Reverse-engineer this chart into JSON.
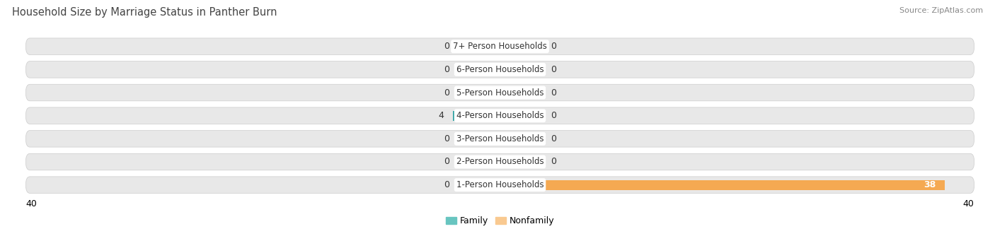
{
  "title": "Household Size by Marriage Status in Panther Burn",
  "source": "Source: ZipAtlas.com",
  "categories": [
    "7+ Person Households",
    "6-Person Households",
    "5-Person Households",
    "4-Person Households",
    "3-Person Households",
    "2-Person Households",
    "1-Person Households"
  ],
  "family_values": [
    0,
    0,
    0,
    4,
    0,
    0,
    0
  ],
  "nonfamily_values": [
    0,
    0,
    0,
    0,
    0,
    0,
    38
  ],
  "family_color_light": "#68C5C0",
  "family_color_dark": "#2BA0A0",
  "nonfamily_color_light": "#F9C990",
  "nonfamily_color_dark": "#F5A952",
  "xlim_left": -40,
  "xlim_right": 40,
  "background_color": "#ffffff",
  "row_bg_color": "#e8e8e8",
  "title_fontsize": 10.5,
  "source_fontsize": 8,
  "value_fontsize": 9,
  "cat_fontsize": 8.5,
  "legend_fontsize": 9,
  "stub_size": 3.5
}
